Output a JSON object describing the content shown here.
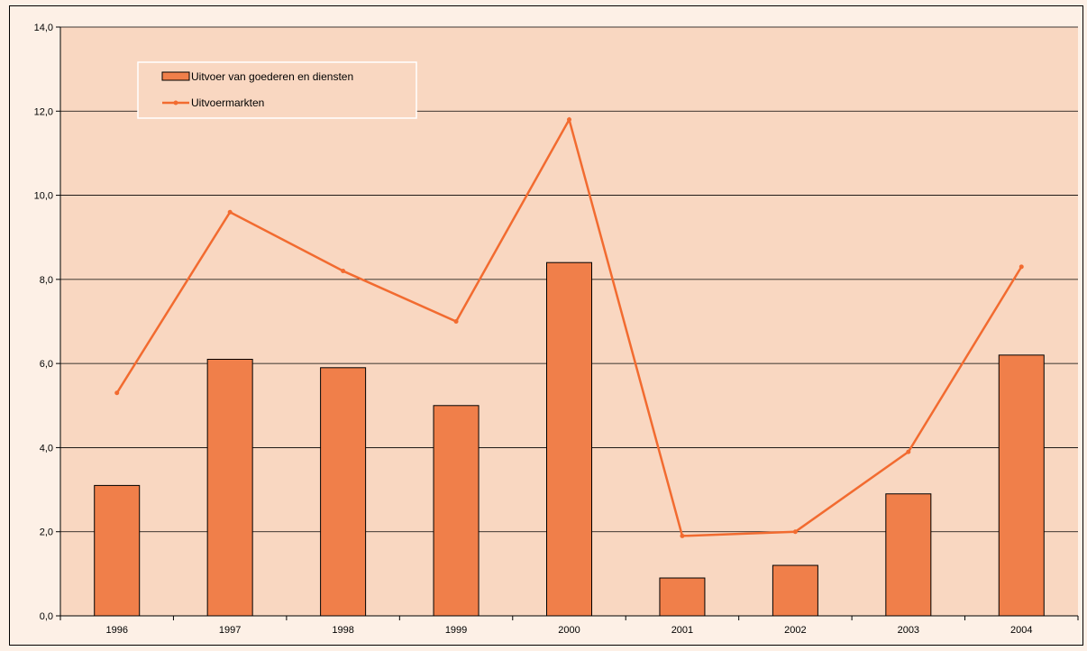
{
  "chart_data": {
    "type": "bar",
    "categories": [
      "1996",
      "1997",
      "1998",
      "1999",
      "2000",
      "2001",
      "2002",
      "2003",
      "2004"
    ],
    "series": [
      {
        "name": "Uitvoer van goederen en diensten",
        "type": "bar",
        "values": [
          3.1,
          6.1,
          5.9,
          5.0,
          8.4,
          0.9,
          1.2,
          2.9,
          6.2
        ]
      },
      {
        "name": "Uitvoermarkten",
        "type": "line",
        "values": [
          5.3,
          9.6,
          8.2,
          7.0,
          11.8,
          1.9,
          2.0,
          3.9,
          8.3
        ]
      }
    ],
    "y_ticks": [
      "0,0",
      "2,0",
      "4,0",
      "6,0",
      "8,0",
      "10,0",
      "12,0",
      "14,0"
    ],
    "ylim": [
      0,
      14
    ],
    "grid": true,
    "legend_position": "top-left",
    "colors": {
      "plot_background": "#f9d7c1",
      "bar_fill": "#f07f4a",
      "bar_stroke": "#000000",
      "line": "#f26b30",
      "grid": "#000000"
    }
  }
}
